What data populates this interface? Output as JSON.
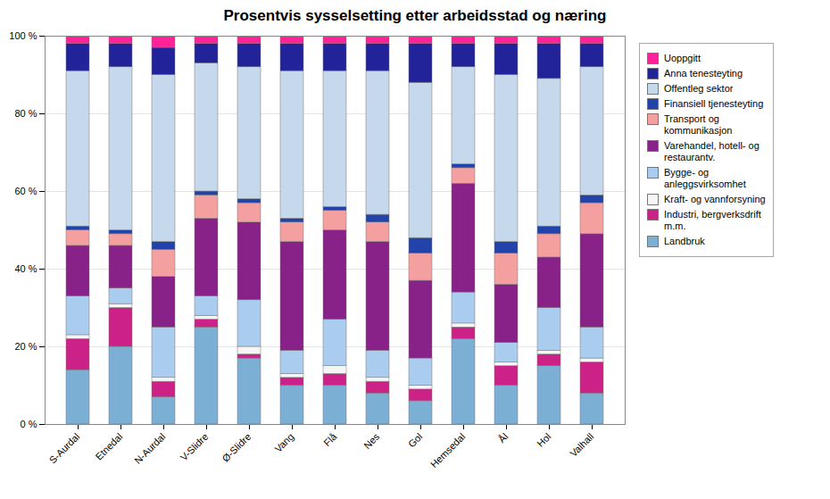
{
  "chart_data": {
    "type": "bar",
    "title": "Prosentvis sysselsetting etter arbeidsstad og næring",
    "categories": [
      "S-Aurdal",
      "Etnedal",
      "N-Aurdal",
      "V-Slidre",
      "Ø-Slidre",
      "Vang",
      "Flå",
      "Nes",
      "Gol",
      "Hemsedal",
      "Ål",
      "Hol",
      "Valhall"
    ],
    "stacked": true,
    "series": [
      {
        "name": "Landbruk",
        "color": "#7BAFD4",
        "values": [
          14,
          20,
          7,
          25,
          17,
          10,
          10,
          8,
          6,
          22,
          10,
          15,
          8
        ]
      },
      {
        "name": "Industri, bergverksdrift\nm.m.",
        "color": "#CC2288",
        "values": [
          8,
          10,
          4,
          2,
          1,
          2,
          3,
          3,
          3,
          3,
          5,
          3,
          8
        ]
      },
      {
        "name": "Kraft- og vannforsyning",
        "color": "#F5F5F5",
        "values": [
          1,
          1,
          1,
          1,
          2,
          1,
          2,
          1,
          1,
          1,
          1,
          1,
          1
        ]
      },
      {
        "name": "Bygge- og\nanleggsvirksomhet",
        "color": "#AACCEE",
        "values": [
          10,
          4,
          13,
          5,
          12,
          6,
          12,
          7,
          7,
          8,
          5,
          11,
          8
        ]
      },
      {
        "name": "Varehandel, hotell- og\nrestaurantv.",
        "color": "#882288",
        "values": [
          13,
          11,
          13,
          20,
          20,
          28,
          23,
          28,
          20,
          28,
          15,
          13,
          24
        ]
      },
      {
        "name": "Transport og\nkommunikasjon",
        "color": "#F4A0A0",
        "values": [
          4,
          3,
          7,
          6,
          5,
          5,
          5,
          5,
          7,
          4,
          8,
          6,
          8
        ]
      },
      {
        "name": "Finansiell tjenesteyting",
        "color": "#2244AA",
        "values": [
          1,
          1,
          2,
          1,
          1,
          1,
          1,
          2,
          4,
          1,
          3,
          2,
          2
        ]
      },
      {
        "name": "Offentleg sektor",
        "color": "#C5D8EC",
        "values": [
          40,
          42,
          43,
          33,
          34,
          38,
          35,
          37,
          40,
          25,
          43,
          38,
          33
        ]
      },
      {
        "name": "Anna tenesteyting",
        "color": "#222299",
        "values": [
          7,
          6,
          7,
          5,
          6,
          7,
          7,
          7,
          10,
          6,
          8,
          9,
          6
        ]
      },
      {
        "name": "Uoppgitt",
        "color": "#FF2299",
        "values": [
          2,
          2,
          3,
          2,
          2,
          2,
          2,
          2,
          2,
          2,
          2,
          2,
          2
        ]
      }
    ],
    "ylim": [
      0,
      100
    ],
    "yticks": [
      {
        "value": 0,
        "label": "0 %"
      },
      {
        "value": 20,
        "label": "20 %"
      },
      {
        "value": 40,
        "label": "40 %"
      },
      {
        "value": 60,
        "label": "60 %"
      },
      {
        "value": 80,
        "label": "80 %"
      },
      {
        "value": 100,
        "label": "100 %"
      }
    ],
    "grid": true,
    "legend": "right"
  }
}
